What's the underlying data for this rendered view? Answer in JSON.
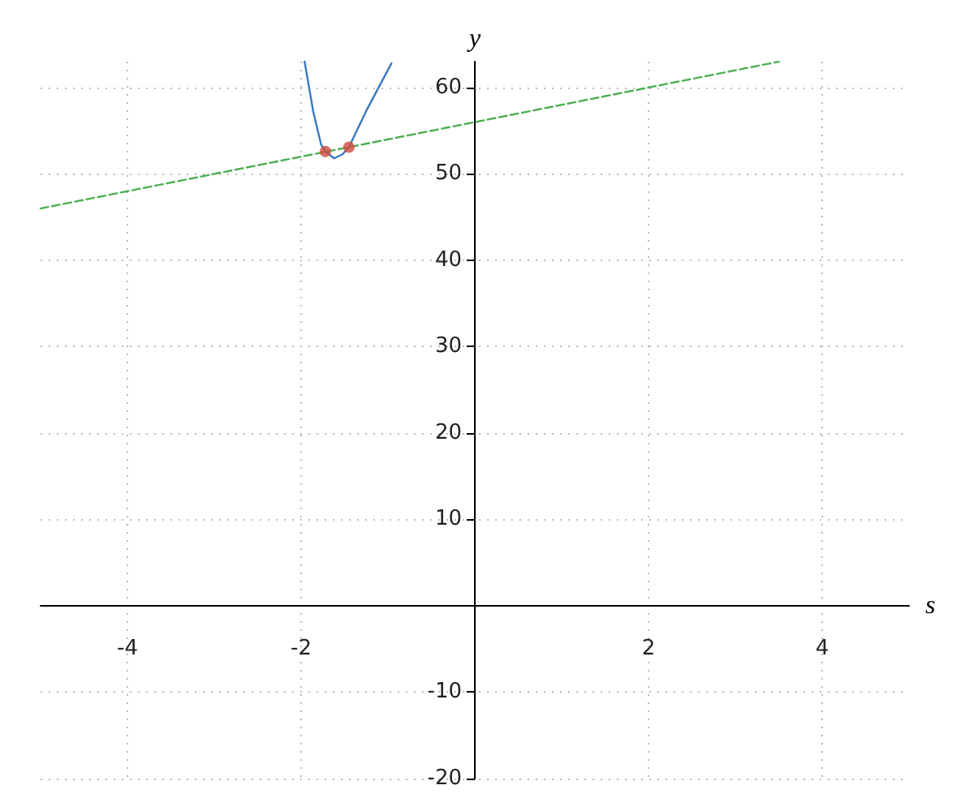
{
  "chart_data": {
    "type": "line",
    "xlabel": "s",
    "ylabel": "y",
    "xlim": [
      -5,
      5
    ],
    "ylim": [
      -20,
      63
    ],
    "xticks": [
      -4,
      -2,
      2,
      4
    ],
    "yticks": [
      -20,
      -10,
      10,
      20,
      30,
      40,
      50,
      60
    ],
    "grid": true,
    "series": [
      {
        "color": "#3a78c2",
        "marker": "none",
        "line_style": "solid",
        "x": [
          -1.96,
          -1.86,
          -1.77,
          -1.72,
          -1.62,
          -1.52,
          -1.45,
          -1.24,
          -0.96
        ],
        "values": [
          63,
          57.2,
          53.4,
          52.6,
          51.8,
          52.3,
          53.1,
          57.5,
          62.8
        ]
      },
      {
        "color": "#4caf50",
        "marker": "none",
        "line_style": "dashed",
        "x": [
          -5,
          3.5
        ],
        "values": [
          46,
          63
        ]
      },
      {
        "type": "scatter",
        "color": "#d04a3c",
        "marker": "circle",
        "x": [
          -1.72,
          -1.45
        ],
        "values": [
          52.6,
          53.1
        ]
      }
    ]
  }
}
